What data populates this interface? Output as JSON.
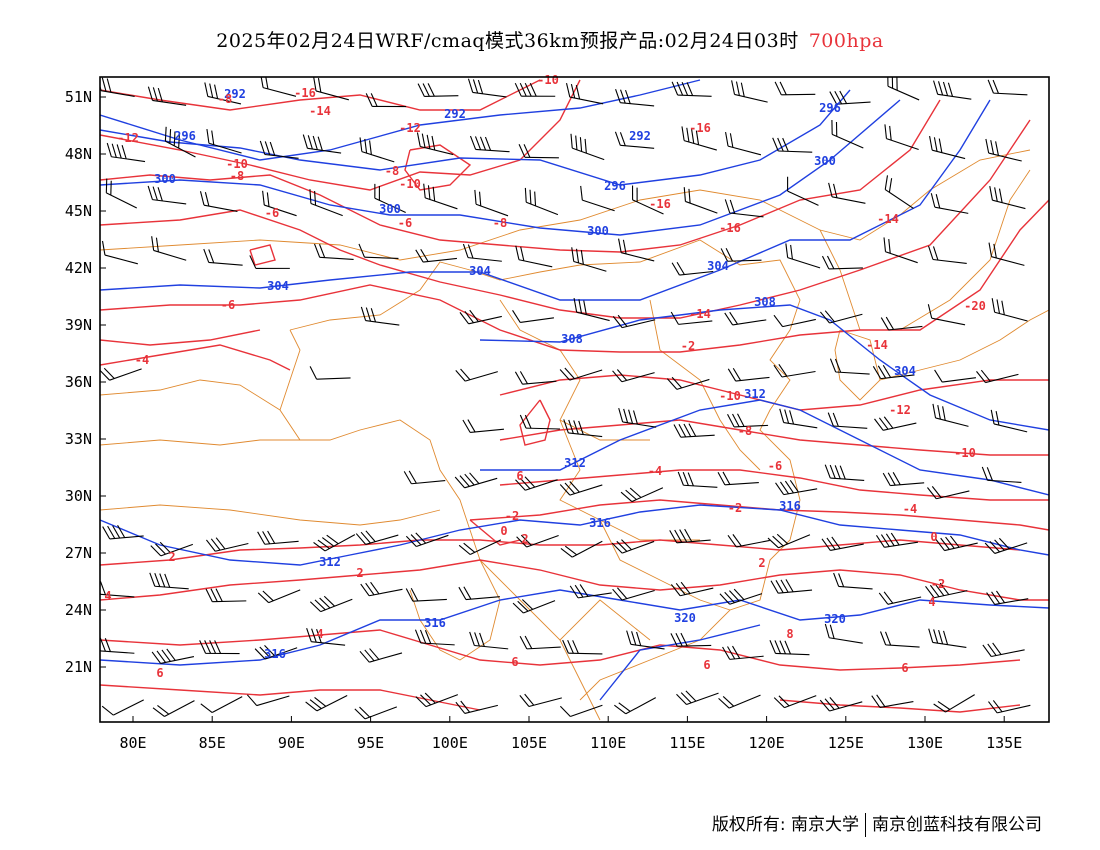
{
  "title": {
    "main": "2025年02月24日WRF/cmaq模式36km预报产品:02月24日03时",
    "level": "700hpa"
  },
  "colors": {
    "temperature_contour": "#e8333a",
    "height_contour": "#2040e0",
    "boundary": "#e08a30",
    "wind_barb": "#000000"
  },
  "axes": {
    "x_ticks": [
      "80E",
      "85E",
      "90E",
      "95E",
      "100E",
      "105E",
      "110E",
      "115E",
      "120E",
      "125E",
      "130E",
      "135E"
    ],
    "y_ticks": [
      "51N",
      "48N",
      "45N",
      "42N",
      "39N",
      "36N",
      "33N",
      "30N",
      "27N",
      "24N",
      "21N"
    ]
  },
  "height_labels": [
    "292",
    "296",
    "300",
    "304",
    "308",
    "312",
    "316",
    "320"
  ],
  "temperature_labels": [
    "-20",
    "-16",
    "-14",
    "-12",
    "-10",
    "-8",
    "-6",
    "-4",
    "-2",
    "0",
    "2",
    "4",
    "6",
    "8"
  ],
  "copyright": {
    "prefix": "版权所有:",
    "org1": "南京大学",
    "org2": "南京创蓝科技有限公司"
  }
}
